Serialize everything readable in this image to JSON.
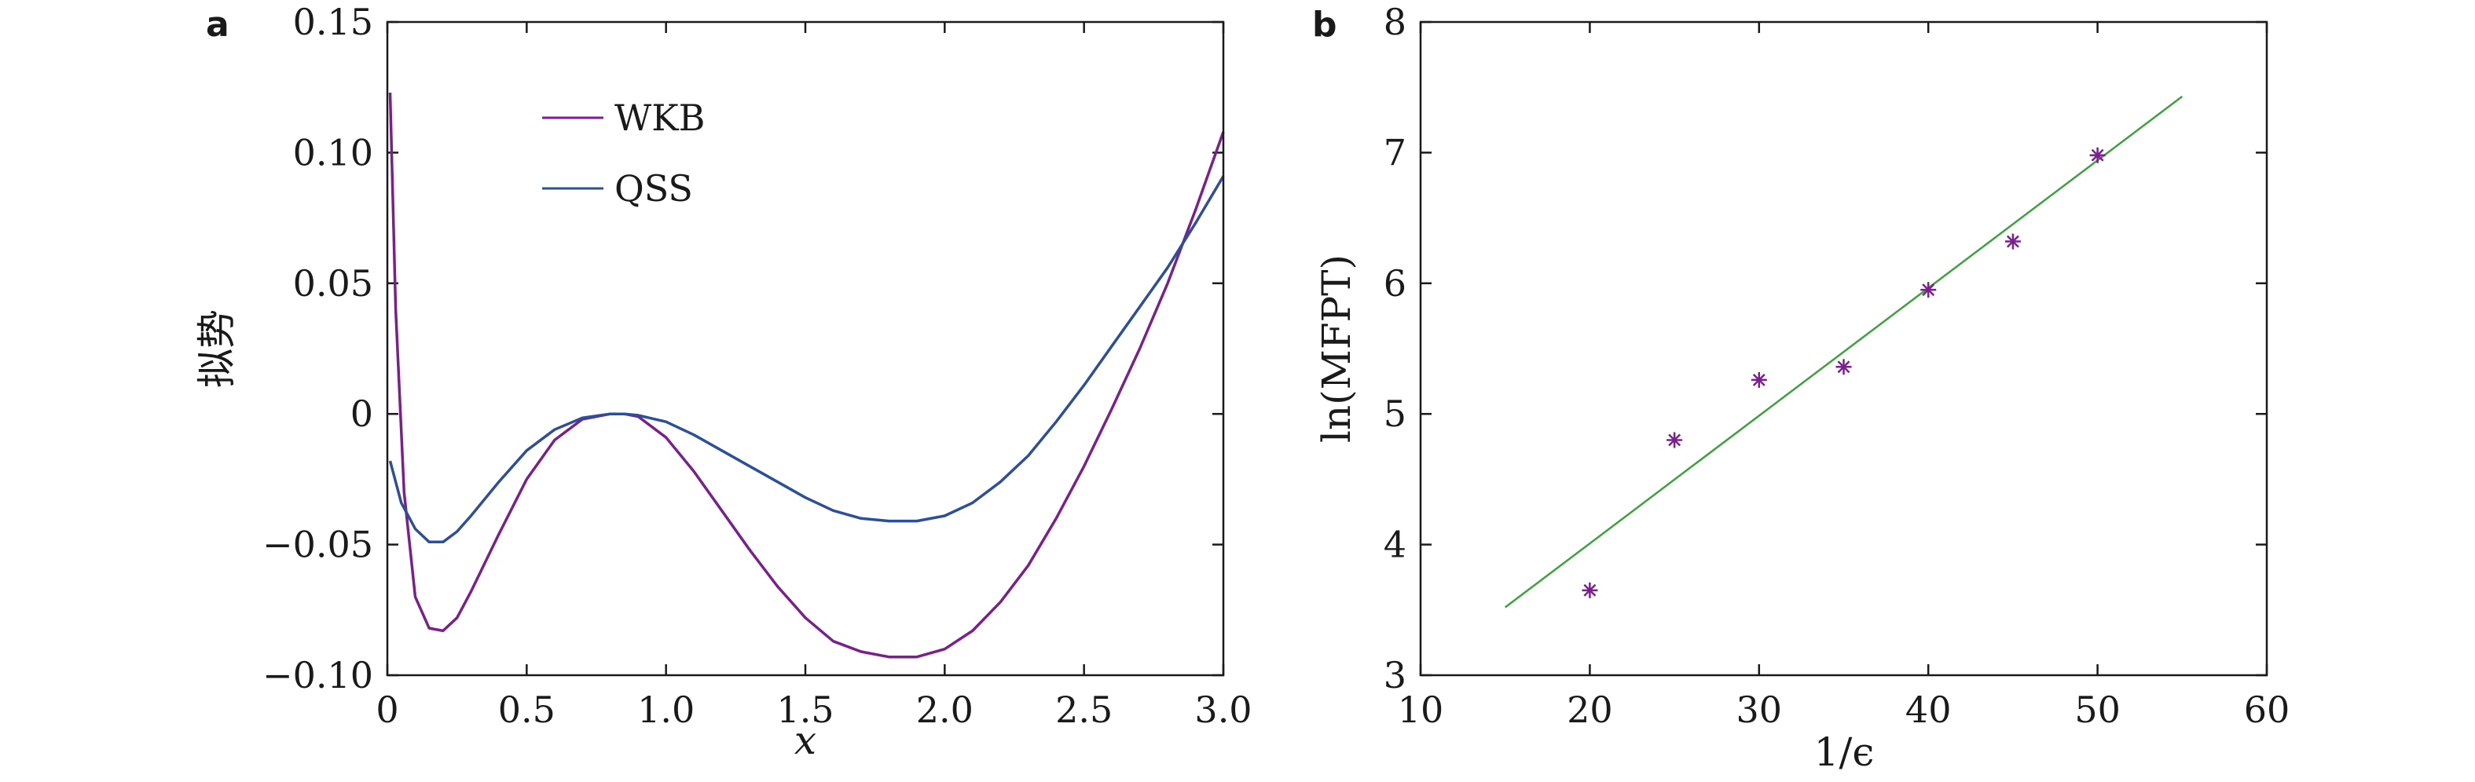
{
  "chart_data": [
    {
      "panel": "a",
      "type": "line",
      "xlabel": "x",
      "ylabel": "拟势",
      "xlim": [
        0,
        3.0
      ],
      "ylim": [
        -0.1,
        0.15
      ],
      "xticks": [
        0,
        0.5,
        1.0,
        1.5,
        2.0,
        2.5,
        3.0
      ],
      "xtick_labels": [
        "0",
        "0.5",
        "1.0",
        "1.5",
        "2.0",
        "2.5",
        "3.0"
      ],
      "yticks": [
        -0.1,
        -0.05,
        0,
        0.05,
        0.1,
        0.15
      ],
      "ytick_labels": [
        "−0.10",
        "−0.05",
        "0",
        "0.05",
        "0.10",
        "0.15"
      ],
      "legend_position": "upper-center",
      "series": [
        {
          "name": "WKB",
          "color": "#7b1f8e",
          "x": [
            0.01,
            0.03,
            0.06,
            0.1,
            0.15,
            0.2,
            0.25,
            0.3,
            0.4,
            0.5,
            0.6,
            0.7,
            0.8,
            0.85,
            0.9,
            1.0,
            1.1,
            1.2,
            1.3,
            1.4,
            1.5,
            1.6,
            1.7,
            1.8,
            1.9,
            2.0,
            2.1,
            2.2,
            2.3,
            2.4,
            2.5,
            2.6,
            2.7,
            2.8,
            2.9,
            3.0
          ],
          "y": [
            0.123,
            0.04,
            -0.03,
            -0.07,
            -0.082,
            -0.083,
            -0.078,
            -0.068,
            -0.046,
            -0.025,
            -0.01,
            -0.002,
            0.0,
            0.0,
            -0.001,
            -0.009,
            -0.022,
            -0.037,
            -0.052,
            -0.066,
            -0.078,
            -0.087,
            -0.091,
            -0.093,
            -0.093,
            -0.09,
            -0.083,
            -0.072,
            -0.058,
            -0.04,
            -0.02,
            0.002,
            0.025,
            0.05,
            0.078,
            0.108
          ]
        },
        {
          "name": "QSS",
          "color": "#2b4f9a",
          "x": [
            0.01,
            0.05,
            0.1,
            0.15,
            0.2,
            0.25,
            0.3,
            0.4,
            0.5,
            0.6,
            0.7,
            0.8,
            0.85,
            0.9,
            1.0,
            1.1,
            1.2,
            1.3,
            1.4,
            1.5,
            1.6,
            1.7,
            1.8,
            1.9,
            2.0,
            2.1,
            2.2,
            2.3,
            2.4,
            2.5,
            2.6,
            2.7,
            2.8,
            2.9,
            3.0
          ],
          "y": [
            -0.018,
            -0.034,
            -0.044,
            -0.049,
            -0.049,
            -0.045,
            -0.039,
            -0.026,
            -0.014,
            -0.006,
            -0.0015,
            0.0,
            0.0,
            -0.0005,
            -0.003,
            -0.008,
            -0.014,
            -0.02,
            -0.026,
            -0.032,
            -0.037,
            -0.04,
            -0.041,
            -0.041,
            -0.039,
            -0.034,
            -0.026,
            -0.016,
            -0.003,
            0.011,
            0.026,
            0.041,
            0.056,
            0.073,
            0.091
          ]
        }
      ]
    },
    {
      "panel": "b",
      "type": "scatter",
      "xlabel": "1/ϵ",
      "ylabel": "ln(MFPT)",
      "xlim": [
        10,
        60
      ],
      "ylim": [
        3,
        8
      ],
      "xticks": [
        10,
        20,
        30,
        40,
        50,
        60
      ],
      "xtick_labels": [
        "10",
        "20",
        "30",
        "40",
        "50",
        "60"
      ],
      "yticks": [
        3,
        4,
        5,
        6,
        7,
        8
      ],
      "ytick_labels": [
        "3",
        "4",
        "5",
        "6",
        "7",
        "8"
      ],
      "grid": false,
      "series": [
        {
          "role": "data points",
          "color": "#7b1f8e",
          "marker": "asterisk",
          "x": [
            20,
            25,
            30,
            35,
            40,
            45,
            50
          ],
          "y": [
            3.65,
            4.8,
            5.26,
            5.36,
            5.95,
            6.32,
            6.98
          ]
        },
        {
          "role": "linear fit",
          "color": "#3aa33a",
          "x": [
            15,
            55
          ],
          "y": [
            3.52,
            7.43
          ]
        }
      ]
    }
  ]
}
